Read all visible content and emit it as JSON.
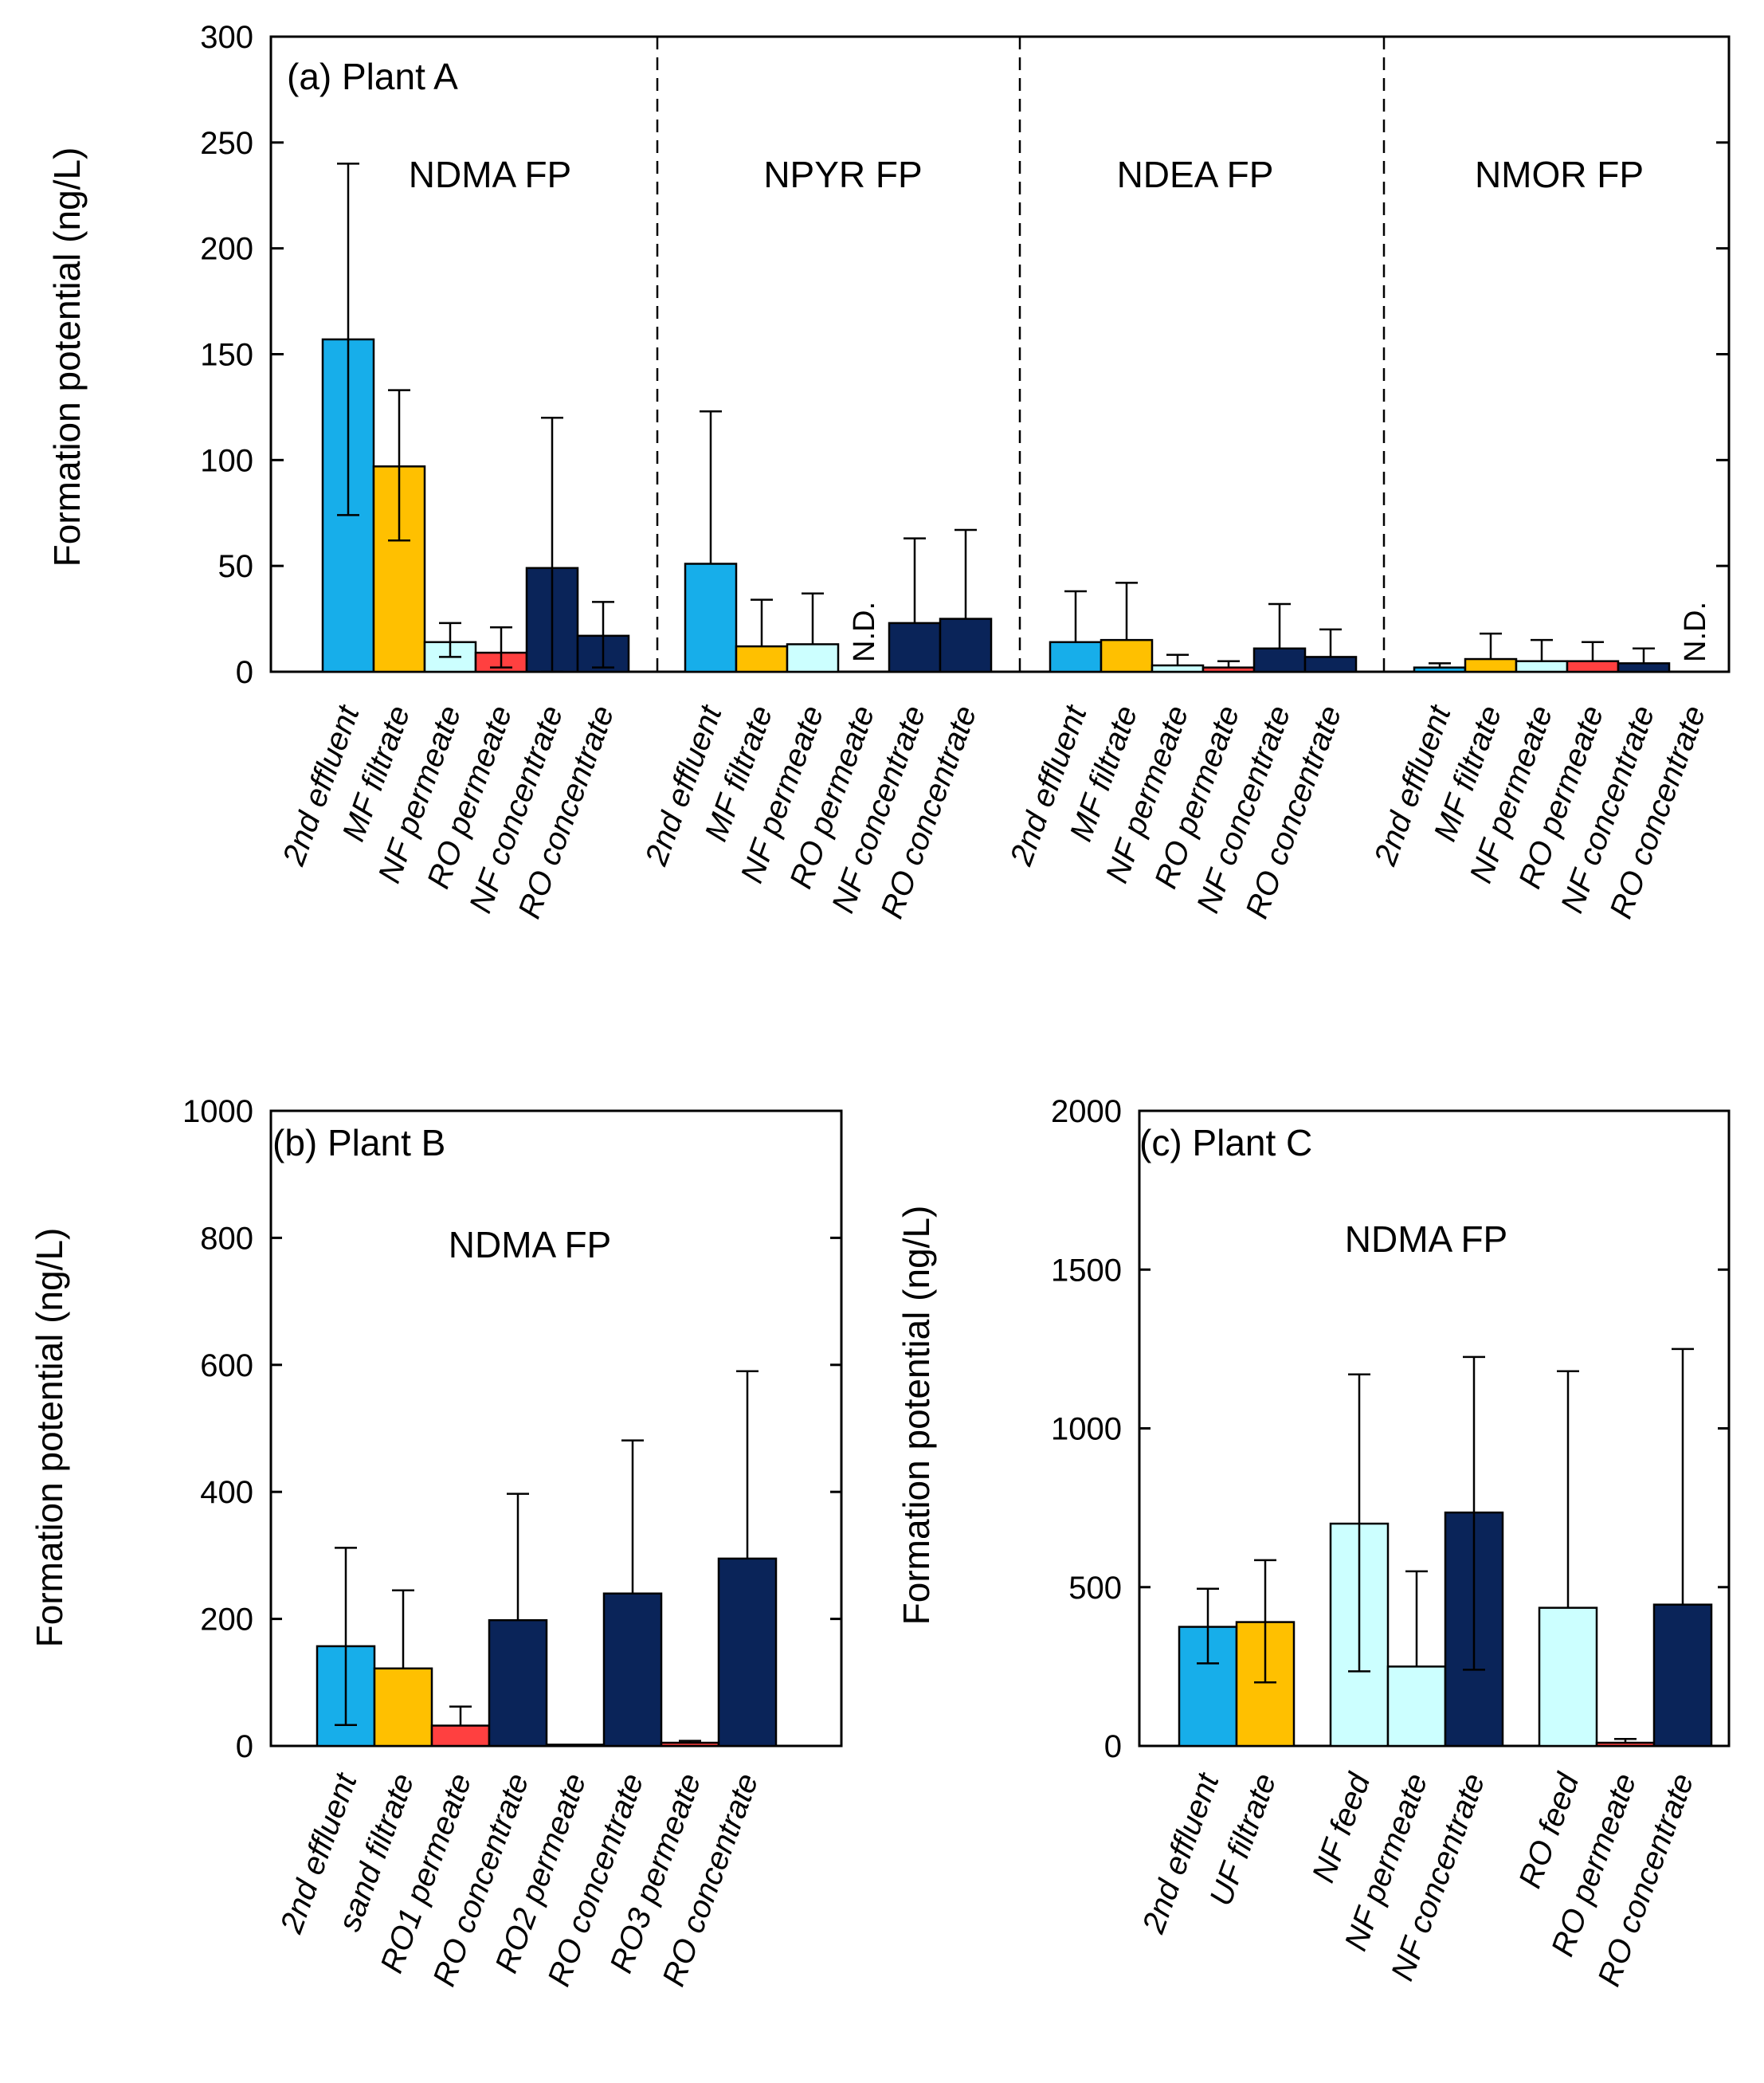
{
  "figure": {
    "colors": {
      "2nd effluent": "#17AEEA",
      "MF filtrate": "#FFC000",
      "UF filtrate": "#FFC000",
      "sand filtrate": "#FFC000",
      "NF permeate": "#CCFFFF",
      "NF feed": "#CCFFFF",
      "RO feed": "#CCFFFF",
      "RO permeate": "#FF4040",
      "RO1 permeate": "#FF4040",
      "RO2 permeate": "#FF4040",
      "RO3 permeate": "#FF4040",
      "NF concentrate": "#0A2459",
      "RO concentrate": "#0A2459",
      "axis": "#000000"
    }
  },
  "chart_data": [
    {
      "type": "bar",
      "panel": "a",
      "title": "(a) Plant A",
      "ylabel": "Formation potential (ng/L)",
      "xlabel": "",
      "ylim": [
        0,
        300
      ],
      "yticks": [
        0,
        50,
        100,
        150,
        200,
        250,
        300
      ],
      "groups": [
        {
          "label": "NDMA FP",
          "categories": [
            "2nd effluent",
            "MF filtrate",
            "NF permeate",
            "RO permeate",
            "NF concentrate",
            "RO concentrate"
          ],
          "values": [
            157,
            97,
            14,
            9,
            49,
            17
          ],
          "err_high": [
            240,
            133,
            23,
            21,
            120,
            33
          ],
          "err_low": [
            74,
            62,
            7,
            2,
            0,
            2
          ],
          "nd": []
        },
        {
          "label": "NPYR FP",
          "categories": [
            "2nd effluent",
            "MF filtrate",
            "NF permeate",
            "RO permeate",
            "NF concentrate",
            "RO concentrate"
          ],
          "values": [
            51,
            12,
            13,
            0,
            23,
            25
          ],
          "err_high": [
            123,
            34,
            37,
            null,
            63,
            67
          ],
          "err_low": [
            null,
            null,
            null,
            null,
            null,
            null
          ],
          "nd": [
            "RO permeate"
          ],
          "nd_text": "N.D."
        },
        {
          "label": "NDEA FP",
          "categories": [
            "2nd effluent",
            "MF filtrate",
            "NF permeate",
            "RO permeate",
            "NF concentrate",
            "RO concentrate"
          ],
          "values": [
            14,
            15,
            3,
            2,
            11,
            7
          ],
          "err_high": [
            38,
            42,
            8,
            5,
            32,
            20
          ],
          "err_low": [
            null,
            null,
            null,
            null,
            null,
            null
          ],
          "nd": []
        },
        {
          "label": "NMOR FP",
          "categories": [
            "2nd effluent",
            "MF filtrate",
            "NF permeate",
            "RO permeate",
            "NF concentrate",
            "RO concentrate"
          ],
          "values": [
            2,
            6,
            5,
            5,
            4,
            0
          ],
          "err_high": [
            4,
            18,
            15,
            14,
            11,
            null
          ],
          "err_low": [
            null,
            null,
            null,
            null,
            null,
            null
          ],
          "nd": [
            "RO concentrate"
          ],
          "nd_text": "N.D."
        }
      ]
    },
    {
      "type": "bar",
      "panel": "b",
      "title": "(b) Plant B",
      "ylabel": "Formation potential (ng/L)",
      "xlabel": "",
      "ylim": [
        0,
        1000
      ],
      "yticks": [
        0,
        200,
        400,
        600,
        800,
        1000
      ],
      "groups": [
        {
          "label": "NDMA FP",
          "categories": [
            "2nd effluent",
            "sand filtrate",
            "RO1 permeate",
            "RO concentrate",
            "RO2 permeate",
            "RO concentrate",
            "RO3 permeate",
            "RO concentrate"
          ],
          "values": [
            157,
            122,
            32,
            198,
            2,
            240,
            5,
            295
          ],
          "err_high": [
            312,
            245,
            62,
            397,
            null,
            481,
            8,
            590
          ],
          "err_low": [
            33,
            null,
            null,
            null,
            null,
            null,
            null,
            null
          ],
          "nd": []
        }
      ]
    },
    {
      "type": "bar",
      "panel": "c",
      "title": "(c) Plant C",
      "ylabel": "Formation potential (ng/L)",
      "xlabel": "",
      "ylim": [
        0,
        2000
      ],
      "yticks": [
        0,
        500,
        1000,
        1500,
        2000
      ],
      "groups": [
        {
          "label": "NDMA FP",
          "categories": [
            "2nd effluent",
            "UF filtrate",
            "NF feed",
            "NF permeate",
            "NF concentrate",
            "RO feed",
            "RO permeate",
            "RO concentrate"
          ],
          "values": [
            375,
            390,
            700,
            250,
            735,
            435,
            10,
            445
          ],
          "err_high": [
            495,
            585,
            1170,
            550,
            1225,
            1180,
            22,
            1250
          ],
          "err_low": [
            260,
            200,
            235,
            null,
            240,
            null,
            null,
            null
          ],
          "nd": []
        }
      ]
    }
  ]
}
